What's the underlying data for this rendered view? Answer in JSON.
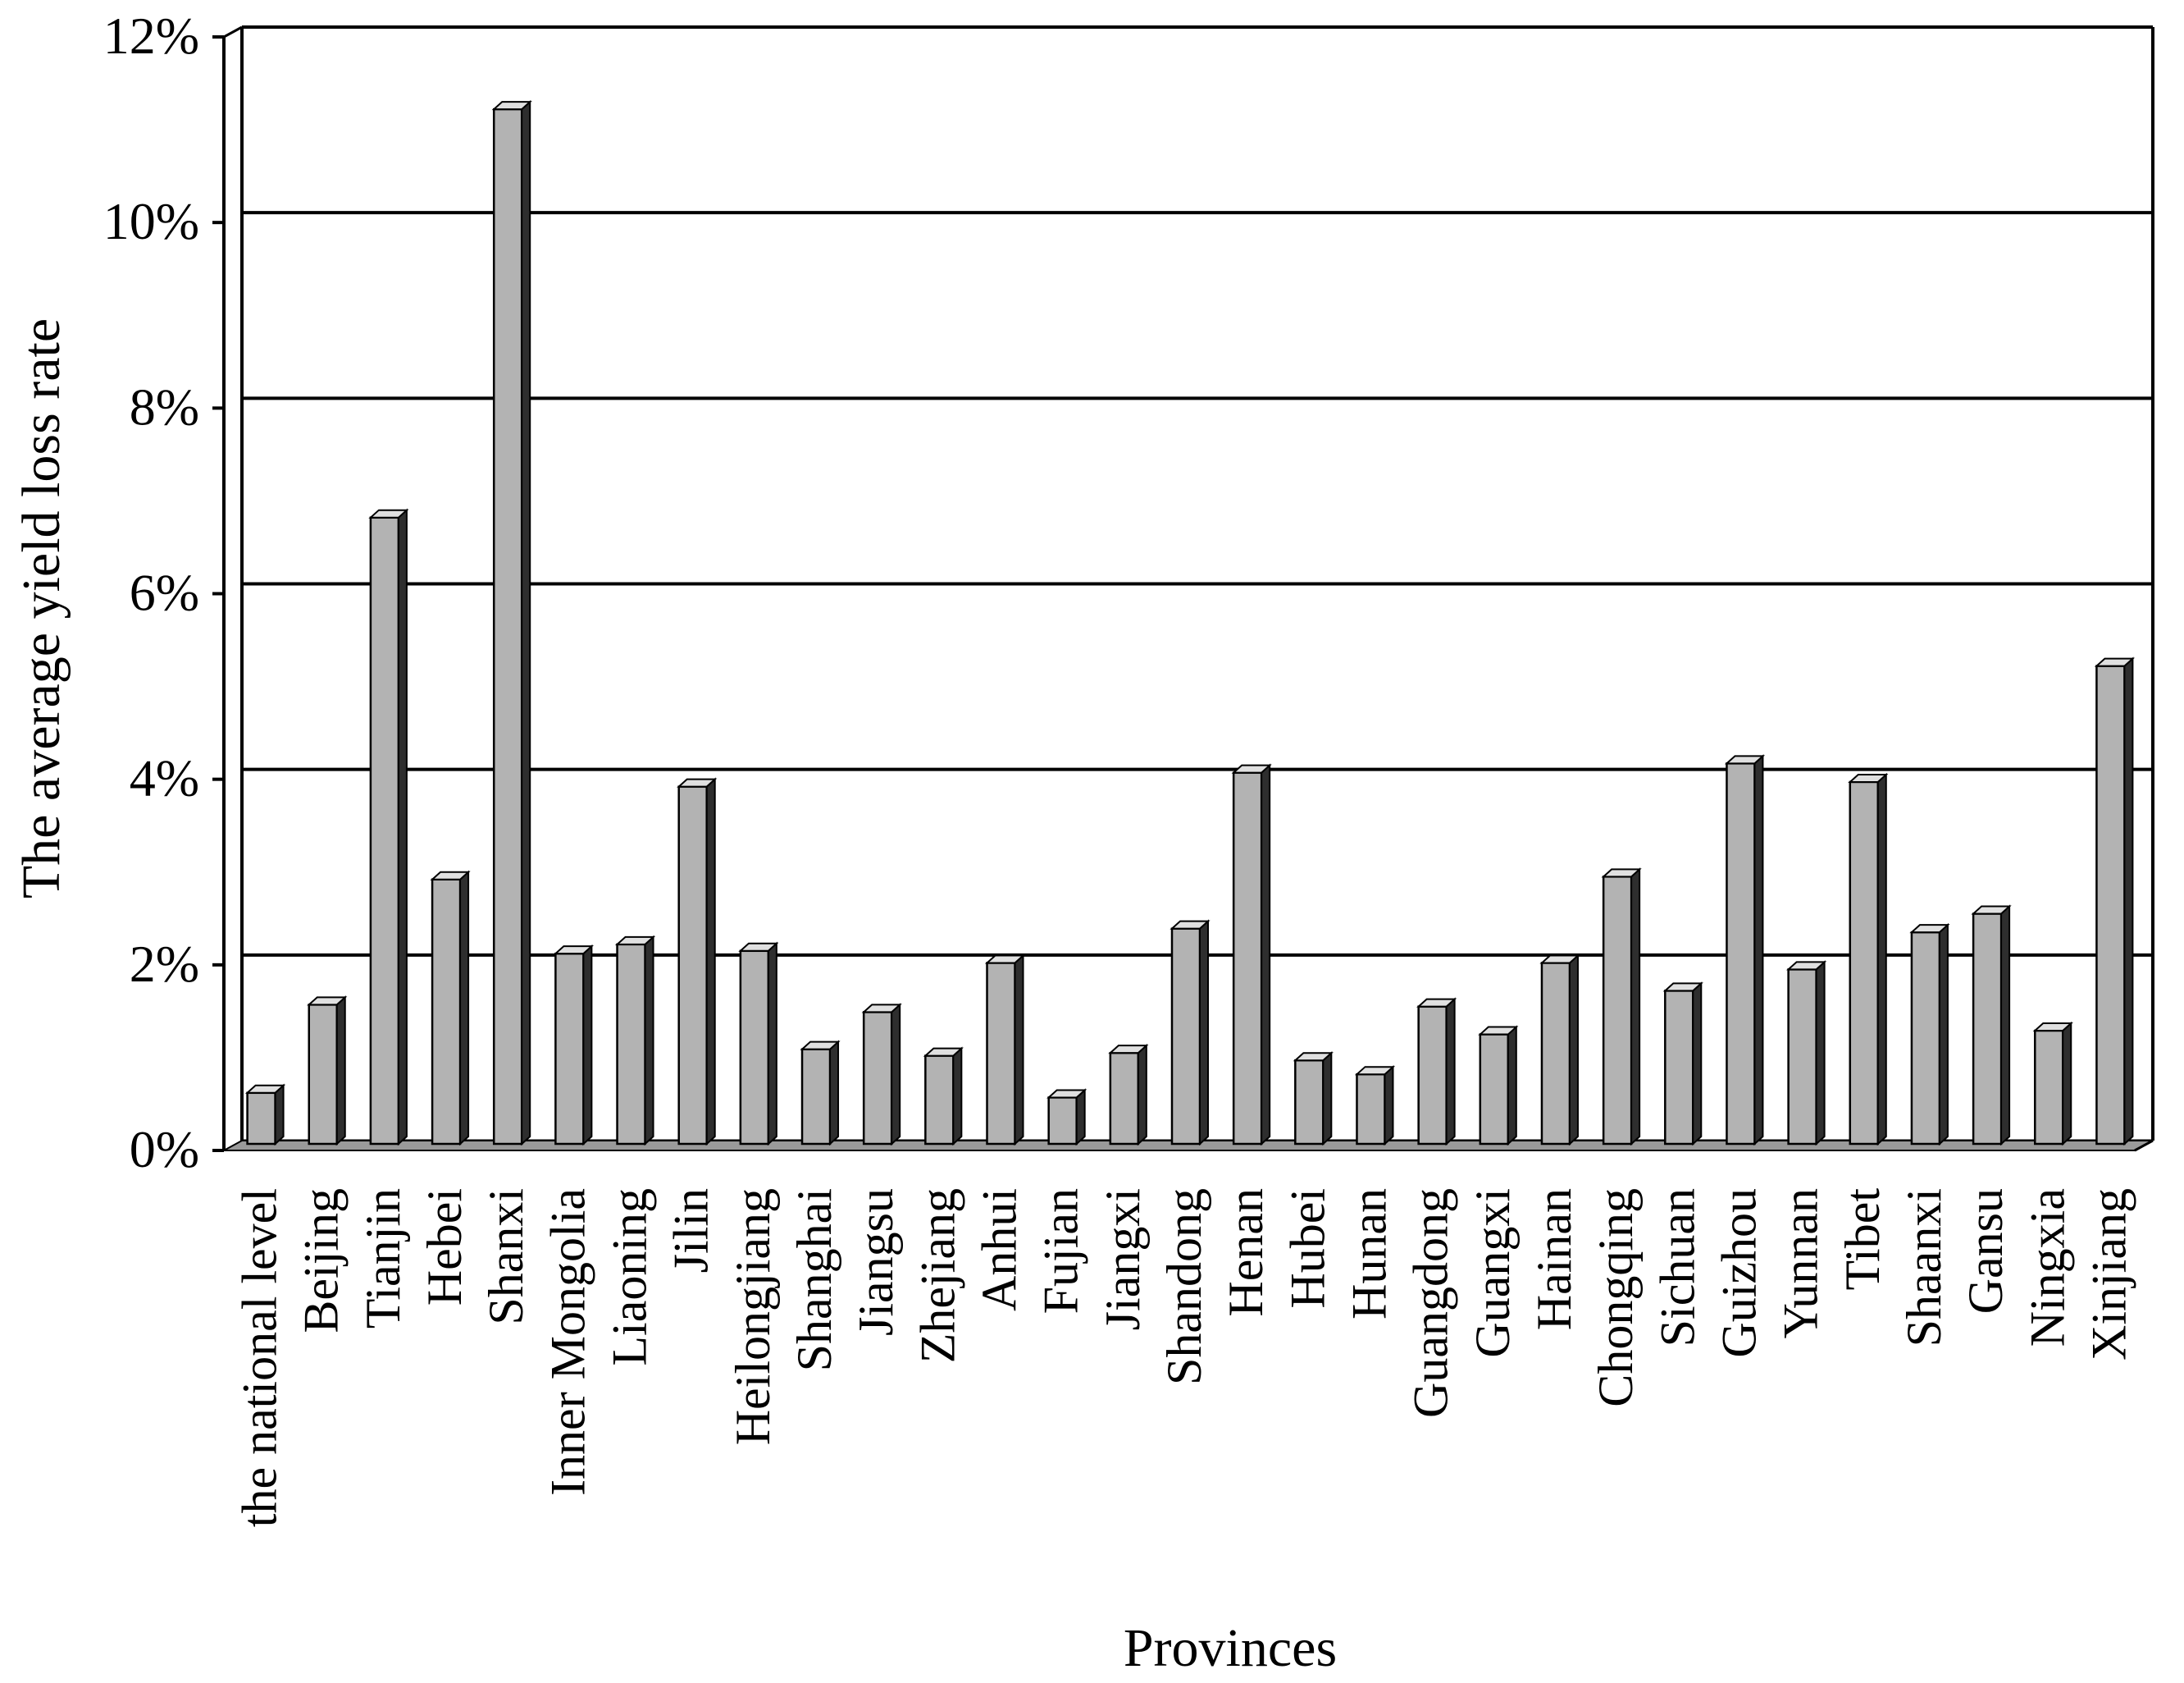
{
  "chart_data": {
    "type": "bar",
    "title": "",
    "xlabel": "Provinces",
    "ylabel": "The average yield loss rate",
    "ylim": [
      0,
      12
    ],
    "yticks": [
      "0%",
      "2%",
      "4%",
      "6%",
      "8%",
      "10%",
      "12%"
    ],
    "grid": true,
    "legend": "none",
    "bar_color": "#b3b3b3",
    "categories": [
      "the national level",
      "Beijing",
      "Tianjin",
      "Hebei",
      "Shanxi",
      "Inner Mongolia",
      "Liaoning",
      "Jilin",
      "Heilongjiang",
      "Shanghai",
      "Jiangsu",
      "Zhejiang",
      "Anhui",
      "Fujian",
      "Jiangxi",
      "Shandong",
      "Henan",
      "Hubei",
      "Hunan",
      "Guangdong",
      "Guangxi",
      "Hainan",
      "Chongqing",
      "Sichuan",
      "Guizhou",
      "Yunnan",
      "Tibet",
      "Shaanxi",
      "Gansu",
      "Ningxia",
      "Xinjiang"
    ],
    "values": [
      0.55,
      1.5,
      6.75,
      2.85,
      11.15,
      2.05,
      2.15,
      3.85,
      2.08,
      1.02,
      1.42,
      0.95,
      1.95,
      0.5,
      0.98,
      2.32,
      4.0,
      0.9,
      0.75,
      1.48,
      1.18,
      1.95,
      2.88,
      1.65,
      4.1,
      1.88,
      3.9,
      2.28,
      2.48,
      1.22,
      5.15
    ]
  }
}
